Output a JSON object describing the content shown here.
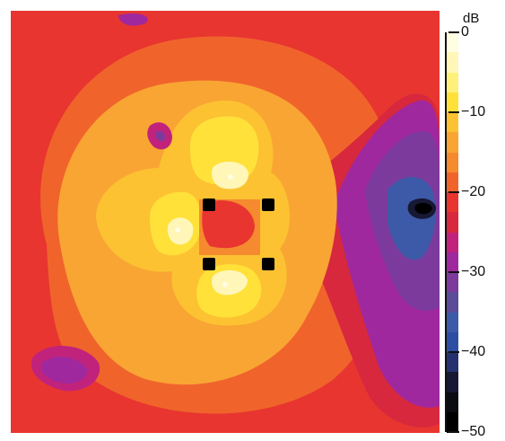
{
  "chart_data": {
    "type": "heatmap",
    "title": "",
    "xlabel": "",
    "ylabel": "",
    "colorbar": {
      "unit": "dB",
      "min": -50,
      "max": 0,
      "step": 2.5,
      "tick_values": [
        0,
        -10,
        -20,
        -30,
        -40,
        -50
      ],
      "tick_labels": [
        "0",
        "−10",
        "−20",
        "−30",
        "−40",
        "−50"
      ],
      "colors_top_to_bottom": [
        "#fffde2",
        "#fff6b8",
        "#fff07a",
        "#ffe13a",
        "#fcc232",
        "#f9a533",
        "#f68a2e",
        "#f0642c",
        "#e83530",
        "#d7283d",
        "#c1237c",
        "#a0289e",
        "#7c3a9c",
        "#5b4b98",
        "#3d5aa8",
        "#2e4ea3",
        "#25326f",
        "#171833",
        "#0b0b12",
        "#000000"
      ]
    },
    "background_level_dB": -20,
    "markers": [
      {
        "shape": "square",
        "x": -1,
        "y": 1
      },
      {
        "shape": "square",
        "x": 1,
        "y": 1
      },
      {
        "shape": "square",
        "x": -1,
        "y": -1
      },
      {
        "shape": "square",
        "x": 1,
        "y": -1
      }
    ],
    "notable_levels": [
      {
        "region": "four lobes around the square array",
        "level_dB": -5
      },
      {
        "region": "lobe peaks",
        "level_dB": 0
      },
      {
        "region": "right side deep null",
        "level_dB": -50
      },
      {
        "region": "right side shadow",
        "level_dB": -35
      }
    ]
  }
}
